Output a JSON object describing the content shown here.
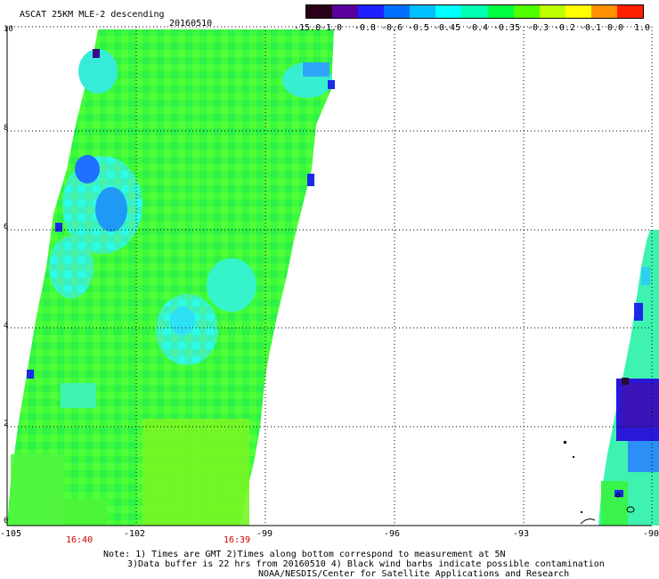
{
  "header": {
    "title": "ASCAT 25KM MLE-2 descending",
    "date": "20160510"
  },
  "colorbar": {
    "labels": [
      "-15.0",
      "-1.0",
      "-0.8",
      "-0.6",
      "-0.5",
      "-0.45",
      "-0.4",
      "-0.35",
      "-0.3",
      "-0.2",
      "-0.1",
      "0.0",
      "1.0"
    ],
    "colors": [
      "#2a0018",
      "#5a00a0",
      "#2020ff",
      "#0070ff",
      "#00c0ff",
      "#00ffff",
      "#00ffb0",
      "#00ff40",
      "#50ff00",
      "#c0ff00",
      "#ffff00",
      "#ff9000",
      "#ff2000"
    ]
  },
  "axes": {
    "x_ticks": [
      "-105",
      "-102",
      "-99",
      "-96",
      "-93",
      "-90"
    ],
    "y_ticks": [
      "10",
      "8",
      "6",
      "4",
      "2",
      "0"
    ],
    "time_labels": [
      "16:40",
      "16:39"
    ]
  },
  "notes": {
    "line1": "Note: 1) Times are GMT 2)Times along bottom correspond to measurement at 5N",
    "line2": "3)Data buffer is 22 hrs from 20160510 4) Black wind barbs indicate possible contamination",
    "line3": "NOAA/NESDIS/Center for Satellite Applications and Research"
  }
}
